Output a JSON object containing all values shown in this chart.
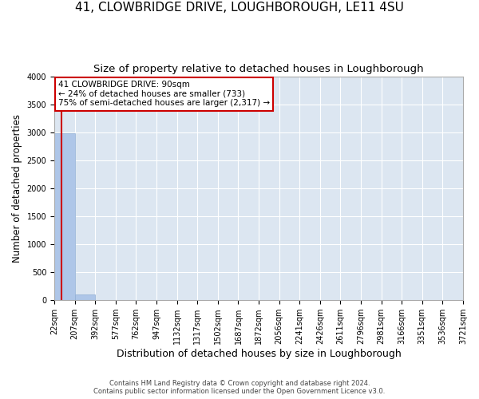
{
  "title": "41, CLOWBRIDGE DRIVE, LOUGHBOROUGH, LE11 4SU",
  "subtitle": "Size of property relative to detached houses in Loughborough",
  "xlabel": "Distribution of detached houses by size in Loughborough",
  "ylabel": "Number of detached properties",
  "footnote1": "Contains HM Land Registry data © Crown copyright and database right 2024.",
  "footnote2": "Contains public sector information licensed under the Open Government Licence v3.0.",
  "bar_edges": [
    22,
    207,
    392,
    577,
    762,
    947,
    1132,
    1317,
    1502,
    1687,
    1872,
    2056,
    2241,
    2426,
    2611,
    2796,
    2981,
    3166,
    3351,
    3536,
    3721
  ],
  "bar_heights": [
    2980,
    110,
    5,
    2,
    1,
    1,
    1,
    0,
    0,
    0,
    0,
    0,
    0,
    0,
    0,
    0,
    0,
    0,
    0,
    0
  ],
  "bar_color": "#aec6e8",
  "bar_edge_color": "#90afd4",
  "property_size": 90,
  "annotation_line1": "41 CLOWBRIDGE DRIVE: 90sqm",
  "annotation_line2": "← 24% of detached houses are smaller (733)",
  "annotation_line3": "75% of semi-detached houses are larger (2,317) →",
  "annotation_box_color": "#ffffff",
  "annotation_border_color": "#cc0000",
  "vline_color": "#cc0000",
  "vline_x": 90,
  "ylim": [
    0,
    4000
  ],
  "yticks": [
    0,
    500,
    1000,
    1500,
    2000,
    2500,
    3000,
    3500,
    4000
  ],
  "plot_bg_color": "#dce6f1",
  "fig_bg_color": "#ffffff",
  "grid_color": "#ffffff",
  "title_fontsize": 11,
  "subtitle_fontsize": 9.5,
  "tick_fontsize": 7,
  "ylabel_fontsize": 8.5,
  "xlabel_fontsize": 9,
  "annotation_fontsize": 7.5,
  "footnote_fontsize": 6
}
